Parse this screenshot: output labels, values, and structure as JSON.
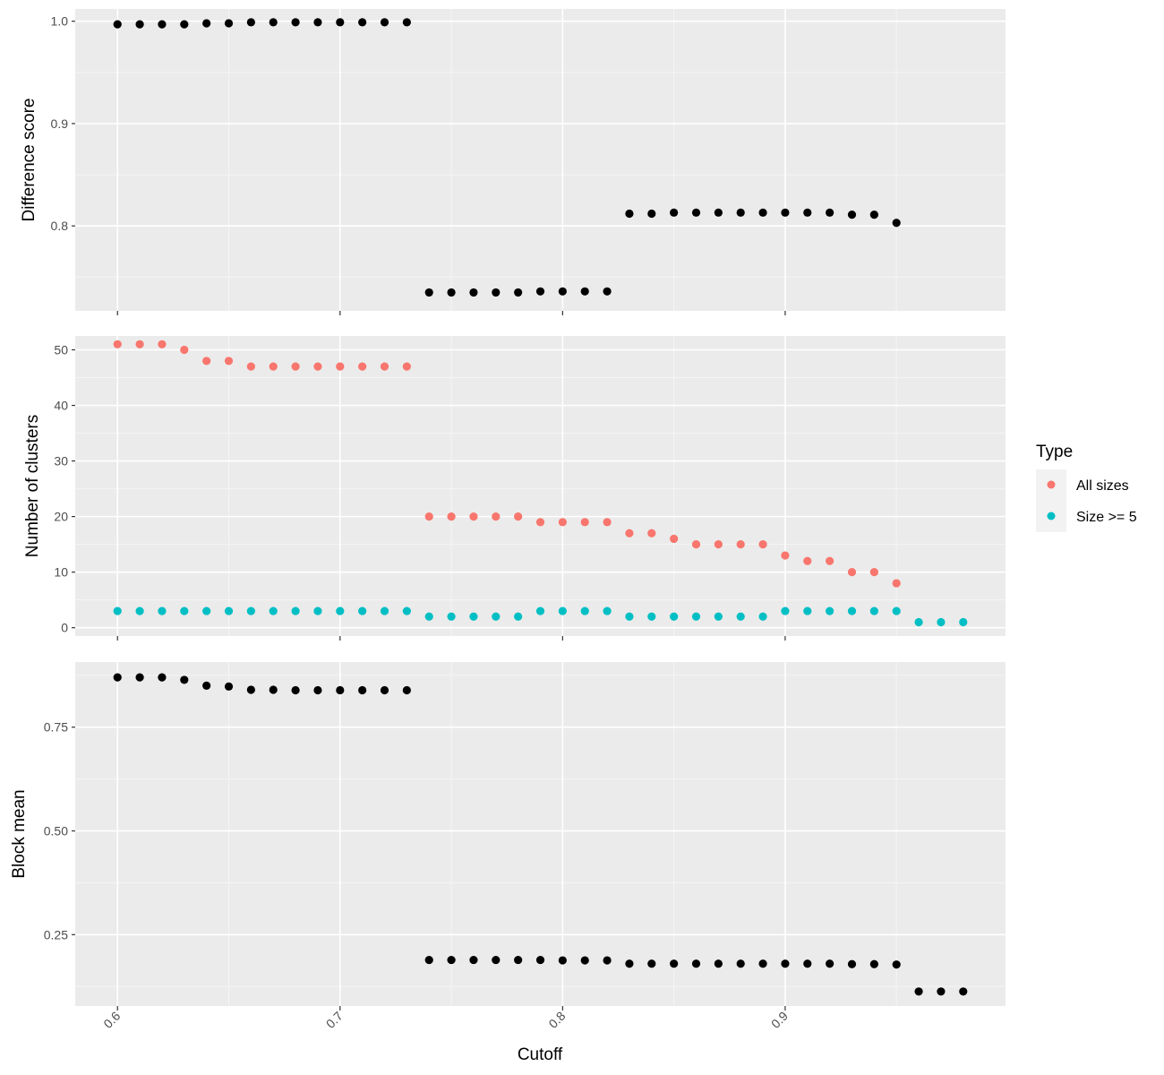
{
  "colors": {
    "panel_bg": "#EBEBEB",
    "grid_major": "#FFFFFF",
    "grid_minor": "#F5F5F5",
    "all_sizes": "#F8766D",
    "size_ge5": "#00BFC4",
    "point_black": "#000000",
    "tick_text": "#4D4D4D",
    "tick_mark": "#333333"
  },
  "chart_data": [
    {
      "type": "scatter",
      "ylabel": "Difference score",
      "yticks": [
        0.8,
        0.9,
        1.0
      ],
      "ytick_labels": [
        "0.8",
        "0.9",
        "1.0"
      ],
      "ylim": [
        0.717,
        1.012
      ],
      "series": [
        {
          "color": "#000000",
          "x": [
            0.6,
            0.61,
            0.62,
            0.63,
            0.64,
            0.65,
            0.66,
            0.67,
            0.68,
            0.69,
            0.7,
            0.71,
            0.72,
            0.73,
            0.74,
            0.75,
            0.76,
            0.77,
            0.78,
            0.79,
            0.8,
            0.81,
            0.82,
            0.83,
            0.84,
            0.85,
            0.86,
            0.87,
            0.88,
            0.89,
            0.9,
            0.91,
            0.92,
            0.93,
            0.94,
            0.95
          ],
          "y": [
            0.997,
            0.997,
            0.997,
            0.997,
            0.998,
            0.998,
            0.999,
            0.999,
            0.999,
            0.999,
            0.999,
            0.999,
            0.999,
            0.999,
            0.735,
            0.735,
            0.735,
            0.735,
            0.735,
            0.736,
            0.736,
            0.736,
            0.736,
            0.812,
            0.812,
            0.813,
            0.813,
            0.813,
            0.813,
            0.813,
            0.813,
            0.813,
            0.813,
            0.811,
            0.811,
            0.803
          ]
        }
      ]
    },
    {
      "type": "scatter",
      "ylabel": "Number of clusters",
      "yticks": [
        0,
        10,
        20,
        30,
        40,
        50
      ],
      "ytick_labels": [
        "0",
        "10",
        "20",
        "30",
        "40",
        "50"
      ],
      "ylim": [
        -1.5,
        52.5
      ],
      "legend": {
        "title": "Type",
        "position": "right",
        "entries": [
          {
            "label": "All sizes",
            "color": "#F8766D"
          },
          {
            "label": "Size >= 5",
            "color": "#00BFC4"
          }
        ]
      },
      "series": [
        {
          "color": "#F8766D",
          "x": [
            0.6,
            0.61,
            0.62,
            0.63,
            0.64,
            0.65,
            0.66,
            0.67,
            0.68,
            0.69,
            0.7,
            0.71,
            0.72,
            0.73,
            0.74,
            0.75,
            0.76,
            0.77,
            0.78,
            0.79,
            0.8,
            0.81,
            0.82,
            0.83,
            0.84,
            0.85,
            0.86,
            0.87,
            0.88,
            0.89,
            0.9,
            0.91,
            0.92,
            0.93,
            0.94,
            0.95
          ],
          "y": [
            51,
            51,
            51,
            50,
            48,
            48,
            47,
            47,
            47,
            47,
            47,
            47,
            47,
            47,
            20,
            20,
            20,
            20,
            20,
            19,
            19,
            19,
            19,
            17,
            17,
            16,
            15,
            15,
            15,
            15,
            13,
            12,
            12,
            10,
            10,
            8
          ]
        },
        {
          "color": "#00BFC4",
          "x": [
            0.6,
            0.61,
            0.62,
            0.63,
            0.64,
            0.65,
            0.66,
            0.67,
            0.68,
            0.69,
            0.7,
            0.71,
            0.72,
            0.73,
            0.74,
            0.75,
            0.76,
            0.77,
            0.78,
            0.79,
            0.8,
            0.81,
            0.82,
            0.83,
            0.84,
            0.85,
            0.86,
            0.87,
            0.88,
            0.89,
            0.9,
            0.91,
            0.92,
            0.93,
            0.94,
            0.95,
            0.96,
            0.97,
            0.98
          ],
          "y": [
            3,
            3,
            3,
            3,
            3,
            3,
            3,
            3,
            3,
            3,
            3,
            3,
            3,
            3,
            2,
            2,
            2,
            2,
            2,
            3,
            3,
            3,
            3,
            2,
            2,
            2,
            2,
            2,
            2,
            2,
            3,
            3,
            3,
            3,
            3,
            3,
            1,
            1,
            1
          ]
        }
      ]
    },
    {
      "type": "scatter",
      "ylabel": "Block mean",
      "xlabel": "Cutoff",
      "yticks": [
        0.25,
        0.5,
        0.75
      ],
      "ytick_labels": [
        "0.25",
        "0.50",
        "0.75"
      ],
      "ylim": [
        0.078,
        0.907
      ],
      "series": [
        {
          "color": "#000000",
          "x": [
            0.6,
            0.61,
            0.62,
            0.63,
            0.64,
            0.65,
            0.66,
            0.67,
            0.68,
            0.69,
            0.7,
            0.71,
            0.72,
            0.73,
            0.74,
            0.75,
            0.76,
            0.77,
            0.78,
            0.79,
            0.8,
            0.81,
            0.82,
            0.83,
            0.84,
            0.85,
            0.86,
            0.87,
            0.88,
            0.89,
            0.9,
            0.91,
            0.92,
            0.93,
            0.94,
            0.95,
            0.96,
            0.97,
            0.98
          ],
          "y": [
            0.87,
            0.87,
            0.87,
            0.864,
            0.85,
            0.848,
            0.84,
            0.84,
            0.839,
            0.839,
            0.839,
            0.839,
            0.839,
            0.839,
            0.189,
            0.189,
            0.189,
            0.189,
            0.189,
            0.189,
            0.188,
            0.188,
            0.188,
            0.18,
            0.18,
            0.18,
            0.18,
            0.18,
            0.18,
            0.18,
            0.18,
            0.18,
            0.18,
            0.179,
            0.179,
            0.178,
            0.113,
            0.113,
            0.113
          ]
        }
      ]
    }
  ],
  "x_axis": {
    "title": "Cutoff",
    "ticks": [
      0.6,
      0.7,
      0.8,
      0.9
    ],
    "tick_labels": [
      "0.6",
      "0.7",
      "0.8",
      "0.9"
    ],
    "xlim": [
      0.581,
      0.999
    ]
  }
}
